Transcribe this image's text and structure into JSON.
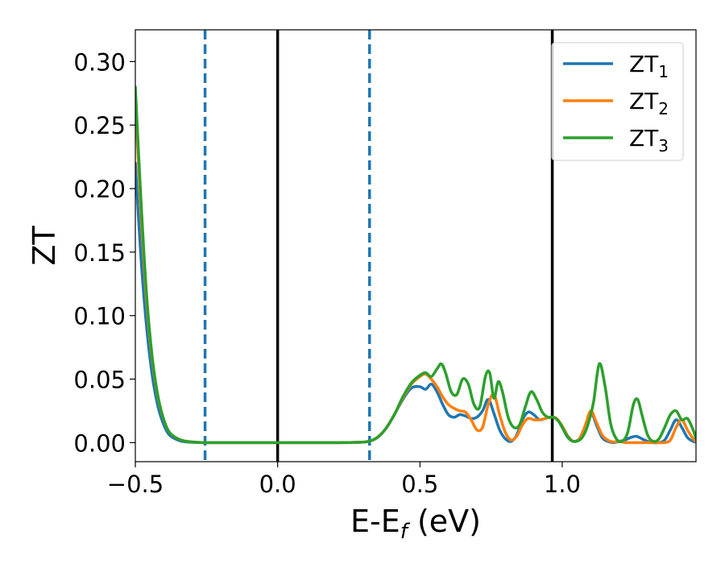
{
  "chart_data": {
    "type": "line",
    "title": "",
    "xlabel": "E-E",
    "xlabel_sub": "f",
    "xlabel_unit": " (eV)",
    "ylabel": "ZT",
    "xlim": [
      -0.5,
      1.47
    ],
    "ylim": [
      -0.015,
      0.325
    ],
    "grid": false,
    "legend_position": "top-right",
    "xticks": [
      {
        "value": -0.5,
        "label": "−0.5"
      },
      {
        "value": 0.0,
        "label": "0.0"
      },
      {
        "value": 0.5,
        "label": "0.5"
      },
      {
        "value": 1.0,
        "label": "1.0"
      }
    ],
    "yticks": [
      {
        "value": 0.0,
        "label": "0.00"
      },
      {
        "value": 0.05,
        "label": "0.05"
      },
      {
        "value": 0.1,
        "label": "0.10"
      },
      {
        "value": 0.15,
        "label": "0.15"
      },
      {
        "value": 0.2,
        "label": "0.20"
      },
      {
        "value": 0.25,
        "label": "0.25"
      },
      {
        "value": 0.3,
        "label": "0.30"
      }
    ],
    "vlines": [
      {
        "x": -0.255,
        "style": "dashed",
        "color": "#1f77b4"
      },
      {
        "x": 0.0,
        "style": "solid",
        "color": "#000000"
      },
      {
        "x": 0.323,
        "style": "dashed",
        "color": "#1f77b4"
      },
      {
        "x": 0.965,
        "style": "solid",
        "color": "#000000"
      }
    ],
    "series": [
      {
        "name": "ZT",
        "sub": "1",
        "color": "#1f77b4",
        "x": [
          -0.5,
          -0.48,
          -0.46,
          -0.44,
          -0.42,
          -0.4,
          -0.38,
          -0.35,
          -0.32,
          -0.28,
          -0.25,
          -0.2,
          0.0,
          0.2,
          0.28,
          0.32,
          0.35,
          0.38,
          0.41,
          0.44,
          0.47,
          0.5,
          0.52,
          0.54,
          0.56,
          0.58,
          0.6,
          0.62,
          0.64,
          0.66,
          0.68,
          0.7,
          0.72,
          0.74,
          0.76,
          0.78,
          0.8,
          0.82,
          0.84,
          0.86,
          0.88,
          0.9,
          0.92,
          0.94,
          0.96,
          0.98,
          1.0,
          1.02,
          1.04,
          1.06,
          1.08,
          1.1,
          1.12,
          1.14,
          1.16,
          1.18,
          1.2,
          1.22,
          1.24,
          1.26,
          1.28,
          1.3,
          1.32,
          1.34,
          1.36,
          1.38,
          1.4,
          1.42,
          1.44,
          1.46,
          1.47
        ],
        "y": [
          0.22,
          0.145,
          0.09,
          0.052,
          0.028,
          0.014,
          0.006,
          0.002,
          0.0005,
          0.0001,
          0.0,
          0.0,
          0.0,
          0.0,
          0.0002,
          0.001,
          0.004,
          0.011,
          0.022,
          0.034,
          0.043,
          0.044,
          0.042,
          0.046,
          0.04,
          0.03,
          0.022,
          0.02,
          0.022,
          0.021,
          0.019,
          0.02,
          0.025,
          0.034,
          0.023,
          0.01,
          0.003,
          0.001,
          0.006,
          0.018,
          0.024,
          0.022,
          0.018,
          0.019,
          0.02,
          0.019,
          0.012,
          0.004,
          0.001,
          0.003,
          0.012,
          0.024,
          0.014,
          0.004,
          0.001,
          0.0,
          0.001,
          0.002,
          0.004,
          0.005,
          0.003,
          0.001,
          0.0,
          0.0,
          0.002,
          0.01,
          0.018,
          0.012,
          0.004,
          0.001,
          0.0005
        ]
      },
      {
        "name": "ZT",
        "sub": "2",
        "color": "#ff7f0e",
        "x": [
          -0.5,
          -0.48,
          -0.46,
          -0.44,
          -0.42,
          -0.4,
          -0.38,
          -0.35,
          -0.32,
          -0.28,
          -0.25,
          -0.2,
          0.0,
          0.2,
          0.28,
          0.32,
          0.35,
          0.38,
          0.41,
          0.44,
          0.47,
          0.5,
          0.52,
          0.54,
          0.56,
          0.58,
          0.6,
          0.62,
          0.64,
          0.66,
          0.68,
          0.7,
          0.72,
          0.74,
          0.76,
          0.78,
          0.8,
          0.82,
          0.84,
          0.86,
          0.88,
          0.9,
          0.92,
          0.94,
          0.96,
          0.98,
          1.0,
          1.02,
          1.04,
          1.06,
          1.08,
          1.1,
          1.12,
          1.14,
          1.16,
          1.18,
          1.2,
          1.22,
          1.24,
          1.26,
          1.28,
          1.3,
          1.32,
          1.34,
          1.36,
          1.38,
          1.4,
          1.42,
          1.44,
          1.46,
          1.47
        ],
        "y": [
          0.27,
          0.18,
          0.11,
          0.064,
          0.035,
          0.018,
          0.008,
          0.003,
          0.001,
          0.0002,
          0.0,
          0.0,
          0.0,
          0.0,
          0.0002,
          0.001,
          0.004,
          0.011,
          0.022,
          0.035,
          0.046,
          0.052,
          0.054,
          0.05,
          0.044,
          0.036,
          0.03,
          0.027,
          0.025,
          0.024,
          0.018,
          0.01,
          0.012,
          0.03,
          0.038,
          0.022,
          0.008,
          0.002,
          0.005,
          0.014,
          0.019,
          0.018,
          0.018,
          0.019,
          0.02,
          0.019,
          0.013,
          0.005,
          0.001,
          0.003,
          0.013,
          0.025,
          0.016,
          0.006,
          0.002,
          0.0005,
          0.001,
          0.0,
          0.0,
          0.0,
          0.0,
          0.0,
          0.0,
          0.0,
          0.0,
          0.002,
          0.012,
          0.018,
          0.01,
          0.003,
          0.001
        ]
      },
      {
        "name": "ZT",
        "sub": "3",
        "color": "#2ca02c",
        "x": [
          -0.5,
          -0.48,
          -0.46,
          -0.44,
          -0.42,
          -0.4,
          -0.38,
          -0.35,
          -0.32,
          -0.28,
          -0.25,
          -0.2,
          0.0,
          0.2,
          0.28,
          0.32,
          0.35,
          0.38,
          0.41,
          0.44,
          0.47,
          0.5,
          0.52,
          0.54,
          0.56,
          0.575,
          0.59,
          0.61,
          0.63,
          0.65,
          0.67,
          0.69,
          0.71,
          0.73,
          0.745,
          0.76,
          0.775,
          0.79,
          0.81,
          0.83,
          0.85,
          0.87,
          0.89,
          0.91,
          0.93,
          0.95,
          0.97,
          0.99,
          1.01,
          1.03,
          1.05,
          1.07,
          1.09,
          1.11,
          1.13,
          1.15,
          1.17,
          1.19,
          1.21,
          1.23,
          1.25,
          1.265,
          1.28,
          1.3,
          1.32,
          1.34,
          1.36,
          1.38,
          1.4,
          1.42,
          1.44,
          1.46,
          1.47
        ],
        "y": [
          0.28,
          0.19,
          0.115,
          0.066,
          0.036,
          0.018,
          0.008,
          0.003,
          0.001,
          0.0002,
          0.0,
          0.0,
          0.0,
          0.0,
          0.0002,
          0.001,
          0.004,
          0.011,
          0.022,
          0.036,
          0.047,
          0.053,
          0.055,
          0.052,
          0.058,
          0.062,
          0.055,
          0.04,
          0.038,
          0.05,
          0.046,
          0.03,
          0.028,
          0.052,
          0.055,
          0.035,
          0.048,
          0.04,
          0.02,
          0.012,
          0.014,
          0.028,
          0.04,
          0.034,
          0.024,
          0.02,
          0.02,
          0.016,
          0.008,
          0.002,
          0.001,
          0.004,
          0.014,
          0.032,
          0.062,
          0.045,
          0.015,
          0.003,
          0.001,
          0.008,
          0.03,
          0.034,
          0.022,
          0.006,
          0.001,
          0.003,
          0.012,
          0.022,
          0.025,
          0.018,
          0.019,
          0.01,
          0.003
        ]
      }
    ]
  }
}
